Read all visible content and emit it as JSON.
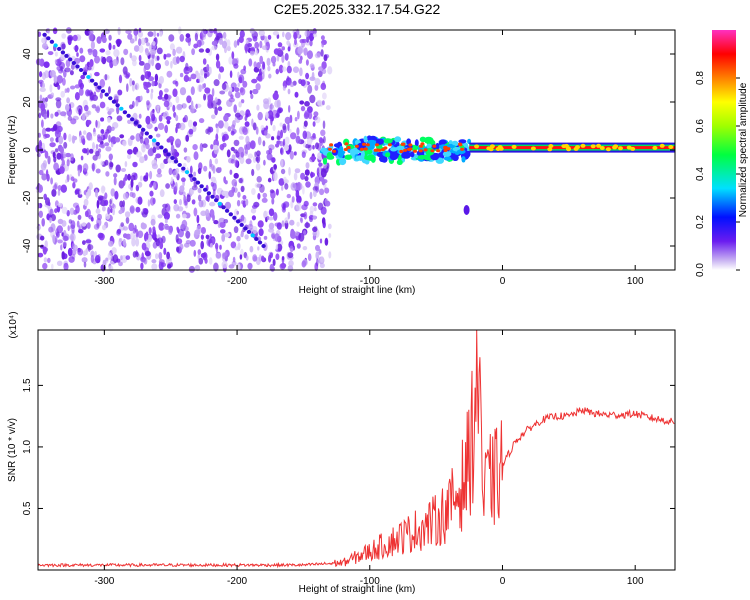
{
  "title": "C2E5.2025.332.17.54.G22",
  "colors": {
    "snr_line": "#ee3333",
    "spectrum_dot": "#7a2cf0"
  },
  "chart_data": [
    {
      "type": "heatmap",
      "xlabel": "Height of straight line (km)",
      "ylabel": "Frequency (Hz)",
      "xlim": [
        -350,
        130
      ],
      "ylim": [
        -50,
        50
      ],
      "xticks": [
        -300,
        -200,
        -100,
        0,
        100
      ],
      "yticks": [
        -40,
        -20,
        0,
        20,
        40
      ],
      "colorbar": {
        "label": "Normalized spectral amplitude",
        "range": [
          0,
          1
        ],
        "ticks": [
          "0.0",
          "0.2",
          "0.4",
          "0.6",
          "0.8"
        ],
        "colormap": "rainbow"
      },
      "features": {
        "noise_region_x": [
          -350,
          -130
        ],
        "diagonal_trace": {
          "x": [
            -345,
            -180
          ],
          "y": [
            48,
            -40
          ]
        },
        "signal_band_y": 1,
        "isolated_blob": {
          "x": -27,
          "y": -25
        }
      }
    },
    {
      "type": "line",
      "xlabel": "Height of straight line (km)",
      "ylabel": "SNR (10 * v/v)",
      "multiplier_label": "(x10⁴)",
      "xlim": [
        -350,
        130
      ],
      "ylim": [
        0,
        1.95
      ],
      "xticks": [
        -300,
        -200,
        -100,
        0,
        100
      ],
      "yticks": [
        "0.5",
        "1.0",
        "1.5"
      ],
      "series": [
        {
          "x": [
            -350,
            -300,
            -250,
            -200,
            -150,
            -120,
            -100,
            -80,
            -60,
            -50,
            -40,
            -30,
            -25,
            -20,
            -17,
            -15,
            -12,
            -5,
            0,
            10,
            20,
            30,
            40,
            50,
            60,
            70,
            80,
            90,
            100,
            110,
            120,
            130
          ],
          "y": [
            0.04,
            0.04,
            0.04,
            0.04,
            0.04,
            0.06,
            0.15,
            0.25,
            0.35,
            0.4,
            0.5,
            0.7,
            0.9,
            1.4,
            1.95,
            0.5,
            0.7,
            0.75,
            0.85,
            1.05,
            1.15,
            1.22,
            1.25,
            1.25,
            1.3,
            1.27,
            1.26,
            1.26,
            1.27,
            1.24,
            1.22,
            1.2
          ]
        }
      ]
    }
  ]
}
